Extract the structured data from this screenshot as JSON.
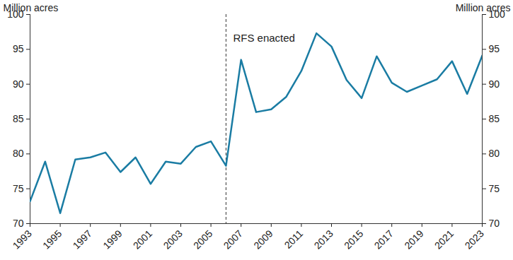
{
  "chart_data": {
    "type": "line",
    "x": [
      1993,
      1994,
      1995,
      1996,
      1997,
      1998,
      1999,
      2000,
      2001,
      2002,
      2003,
      2004,
      2005,
      2006,
      2007,
      2008,
      2009,
      2010,
      2011,
      2012,
      2013,
      2014,
      2015,
      2016,
      2017,
      2018,
      2019,
      2020,
      2021,
      2022,
      2023
    ],
    "values": [
      73.2,
      78.9,
      71.5,
      79.2,
      79.5,
      80.2,
      77.4,
      79.5,
      75.7,
      78.9,
      78.6,
      81.0,
      81.8,
      78.3,
      93.5,
      86.0,
      86.4,
      88.2,
      91.9,
      97.3,
      95.4,
      90.6,
      88.0,
      94.0,
      90.2,
      88.9,
      89.8,
      90.7,
      93.3,
      88.6,
      94.1
    ],
    "color": "#1a7ca3",
    "xlim": [
      1993,
      2023
    ],
    "xticks": [
      1993,
      1995,
      1997,
      1999,
      2001,
      2003,
      2005,
      2007,
      2009,
      2011,
      2013,
      2015,
      2017,
      2019,
      2021,
      2023
    ],
    "ylim": [
      70,
      100
    ],
    "yticks": [
      70,
      75,
      80,
      85,
      90,
      95,
      100
    ],
    "y2lim": [
      70,
      100
    ],
    "y2ticks": [
      70,
      75,
      80,
      85,
      90,
      95,
      100
    ],
    "y_label": "Million acres",
    "y2_label": "Million acres",
    "annotations": [
      {
        "x": 2006,
        "label": "RFS enacted"
      }
    ],
    "grid": false
  }
}
